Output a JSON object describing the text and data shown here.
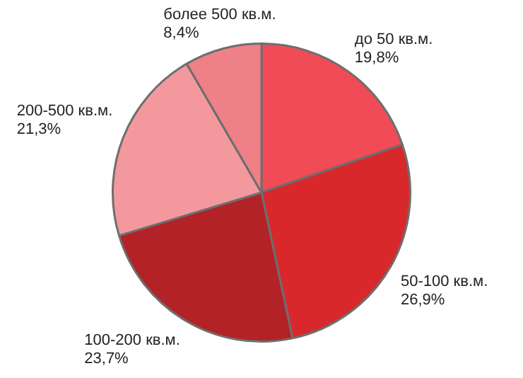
{
  "chart_data": {
    "type": "pie",
    "categories": [
      "до 50 кв.м.",
      "50-100 кв.м.",
      "100-200 кв.м.",
      "200-500 кв.м.",
      "более 500 кв.м."
    ],
    "values": [
      19.8,
      26.9,
      23.7,
      21.3,
      8.4
    ],
    "value_labels": [
      "19,8%",
      "26,9%",
      "23,7%",
      "21,3%",
      "8,4%"
    ],
    "colors": [
      "#f04b57",
      "#d8282c",
      "#b22226",
      "#f3999e",
      "#ef8088"
    ],
    "legend": false
  }
}
